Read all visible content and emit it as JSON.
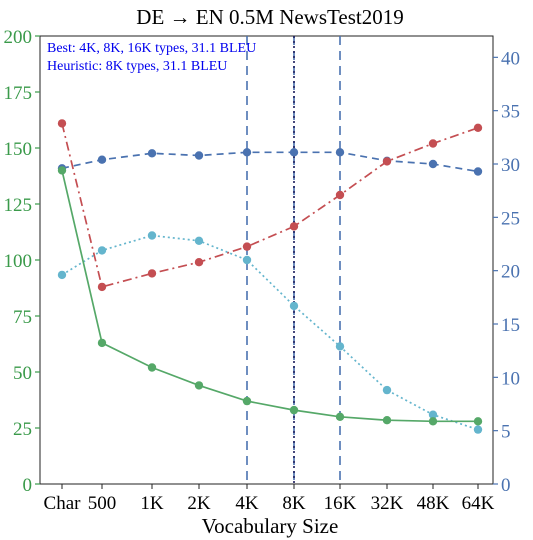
{
  "chart_data": {
    "type": "line",
    "title": "DE → EN 0.5M NewsTest2019",
    "xlabel": "Vocabulary Size",
    "categories": [
      "Char",
      "500",
      "1K",
      "2K",
      "4K",
      "8K",
      "16K",
      "32K",
      "48K",
      "64K"
    ],
    "left_axis": {
      "range": [
        0,
        200
      ],
      "ticks": [
        "0",
        "25",
        "50",
        "75",
        "100",
        "125",
        "150",
        "175",
        "200"
      ],
      "color": "#3a9a4a"
    },
    "right_axis": {
      "range": [
        0,
        42
      ],
      "ticks": [
        "0",
        "5",
        "10",
        "15",
        "20",
        "25",
        "30",
        "35",
        "40"
      ],
      "color": "#4a72b0"
    },
    "annotations": [
      "Best: 4K, 8K, 16K types, 31.1 BLEU",
      "Heuristic: 8K types, 31.1 BLEU"
    ],
    "annotation_color": "#0000ee",
    "vertical_lines": {
      "dashed": [
        "4K",
        "8K",
        "16K"
      ],
      "dotted": [
        "8K"
      ]
    },
    "grid": false,
    "series": [
      {
        "axis": "right",
        "color": "#4a72b0",
        "style": "dashed",
        "values": [
          29.6,
          30.4,
          31.0,
          30.8,
          31.1,
          31.1,
          31.1,
          30.3,
          30.0,
          29.3
        ]
      },
      {
        "axis": "left",
        "color": "#c44e52",
        "style": "dashdot",
        "values": [
          161,
          88,
          94,
          99,
          106,
          115,
          129,
          144,
          152,
          159
        ]
      },
      {
        "axis": "right",
        "color": "#64b5cd",
        "style": "dotted",
        "values": [
          19.6,
          21.9,
          23.3,
          22.8,
          21.0,
          16.7,
          12.9,
          8.8,
          6.5,
          5.1
        ]
      },
      {
        "axis": "left",
        "color": "#55a868",
        "style": "solid",
        "values": [
          140,
          63,
          52,
          44,
          37,
          33,
          30,
          28.5,
          28,
          28
        ]
      }
    ]
  }
}
